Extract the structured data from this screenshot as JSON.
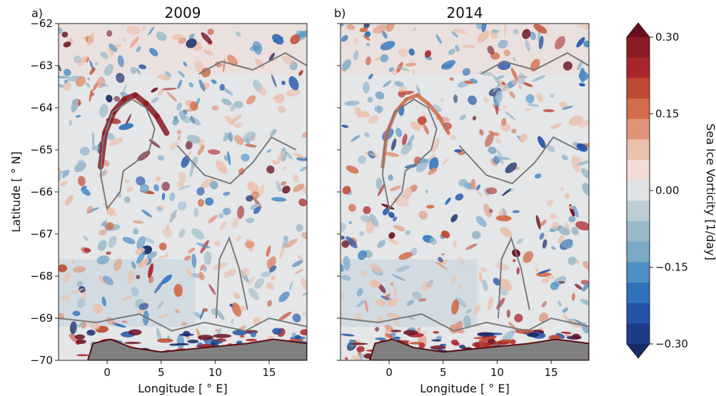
{
  "chart_data": [
    {
      "type": "heatmap",
      "panel_label": "a)",
      "title": "2009",
      "xlabel": "Longitude [$^\\circ$E]",
      "xlabel_display": "Longitude [ ° E]",
      "ylabel": "Latitude [ ° N]",
      "xlim": [
        -4.5,
        18.5
      ],
      "ylim": [
        -70,
        -62
      ],
      "xticks": [
        0,
        5,
        10,
        15
      ],
      "yticks": [
        -62,
        -63,
        -64,
        -65,
        -66,
        -67,
        -68,
        -69,
        -70
      ],
      "features": {
        "land_mask": "gray, along southern edge near -70°N",
        "contours": "gray bathymetry contours",
        "notes": "strong positive vorticity band on a ring near -64°N, 0–5°E; mixed signals near coast"
      }
    },
    {
      "type": "heatmap",
      "panel_label": "b)",
      "title": "2014",
      "xlabel": "Longitude [$^\\circ$E]",
      "xlabel_display": "Longitude [ ° E]",
      "xlim": [
        -4.5,
        18.5
      ],
      "ylim": [
        -70,
        -62
      ],
      "xticks": [
        0,
        5,
        10,
        15
      ],
      "features": {
        "land_mask": "gray, along southern edge near -70°N",
        "contours": "gray bathymetry contours",
        "notes": "more patchy eddies across interior, positive ring near -64°N"
      }
    }
  ],
  "colorbar": {
    "label": "Sea Ice Vorticity [1/day]",
    "ticks": [
      "0.30",
      "0.15",
      "0.00",
      "−0.15",
      "−0.30"
    ],
    "tick_values": [
      0.3,
      0.15,
      0.0,
      -0.15,
      -0.3
    ],
    "levels_top_to_bottom": [
      "#6b0f1f",
      "#8a1a24",
      "#a8262b",
      "#bf4a33",
      "#d26c4b",
      "#df9478",
      "#ebc0ad",
      "#f1ddd5",
      "#e0e3e6",
      "#bccdd6",
      "#9ab9c9",
      "#7aa8c7",
      "#4f8fc4",
      "#2f72bb",
      "#2253a8",
      "#1d3c8a",
      "#172c6a"
    ],
    "extend": "both"
  },
  "theme": {
    "land": "#808080",
    "contour": "#7a7a7a",
    "neutral": "#e4e6e8"
  }
}
